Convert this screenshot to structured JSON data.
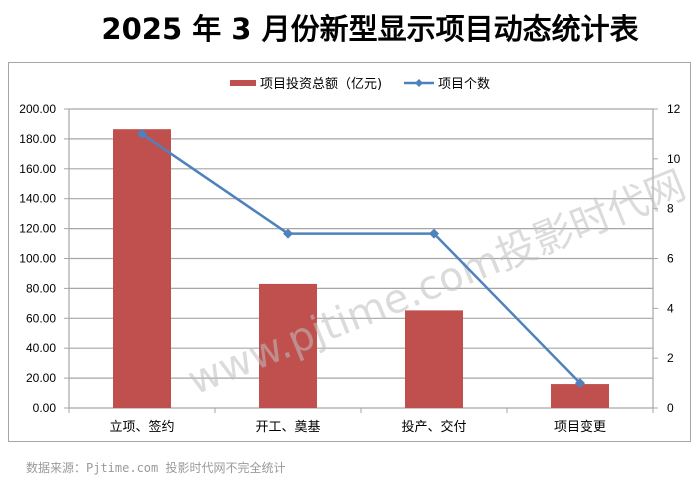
{
  "title": "2025 年 3 月份新型显示项目动态统计表",
  "legend": {
    "bar_label": "项目投资总额（亿元)",
    "line_label": "项目个数"
  },
  "source": "数据来源：Pjtime.com 投影时代网不完全统计",
  "watermark": "www.pjtime.com投影时代网",
  "colors": {
    "bar": "#c0504d",
    "line": "#4f81bd",
    "grid": "#a6a6a6"
  },
  "left_axis_ticks": [
    "0.00",
    "20.00",
    "40.00",
    "60.00",
    "80.00",
    "100.00",
    "120.00",
    "140.00",
    "160.00",
    "180.00",
    "200.00"
  ],
  "right_axis_ticks": [
    "0",
    "2",
    "4",
    "6",
    "8",
    "10",
    "12"
  ],
  "chart_data": {
    "type": "bar",
    "title": "2025 年 3 月份新型显示项目动态统计表",
    "categories": [
      "立项、签约",
      "开工、奠基",
      "投产、交付",
      "项目变更"
    ],
    "series": [
      {
        "name": "项目投资总额（亿元)",
        "type": "bar",
        "axis": "left",
        "values": [
          186.5,
          83,
          65.3,
          16
        ]
      },
      {
        "name": "项目个数",
        "type": "line",
        "axis": "right",
        "values": [
          11,
          7,
          7,
          1
        ]
      }
    ],
    "xlabel": "",
    "ylabel": "",
    "ylim": [
      0,
      200
    ],
    "y2lim": [
      0,
      12
    ],
    "grid": true,
    "legend_position": "top"
  }
}
